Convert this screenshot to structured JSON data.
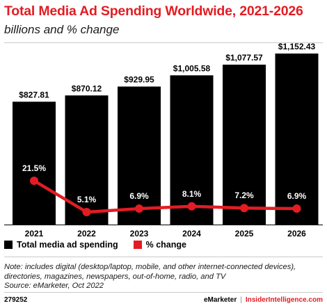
{
  "chart_data": {
    "type": "bar",
    "title": "Total Media Ad Spending Worldwide, 2021-2026",
    "subtitle": "billions and % change",
    "categories": [
      "2021",
      "2022",
      "2023",
      "2024",
      "2025",
      "2026"
    ],
    "series": [
      {
        "name": "Total media ad spending",
        "type": "bar",
        "color": "#000000",
        "values": [
          827.81,
          870.12,
          929.95,
          1005.58,
          1077.57,
          1152.43
        ],
        "labels": [
          "$827.81",
          "$870.12",
          "$929.95",
          "$1,005.58",
          "$1,077.57",
          "$1,152.43"
        ]
      },
      {
        "name": "% change",
        "type": "line",
        "color": "#e31c23",
        "values": [
          21.5,
          5.1,
          6.9,
          8.1,
          7.2,
          6.9
        ],
        "labels": [
          "21.5%",
          "5.1%",
          "6.9%",
          "8.1%",
          "7.2%",
          "6.9%"
        ]
      }
    ],
    "legend_position": "bottom-left",
    "grid": false
  },
  "note": "Note: includes digital (desktop/laptop, mobile, and other internet-connected devices), directories, magazines, newspapers, out-of-home, radio, and TV",
  "source": "Source: eMarketer, Oct 2022",
  "footer": {
    "id": "279252",
    "brand": "eMarketer",
    "separator": "|",
    "site": "InsiderIntelligence.com"
  }
}
